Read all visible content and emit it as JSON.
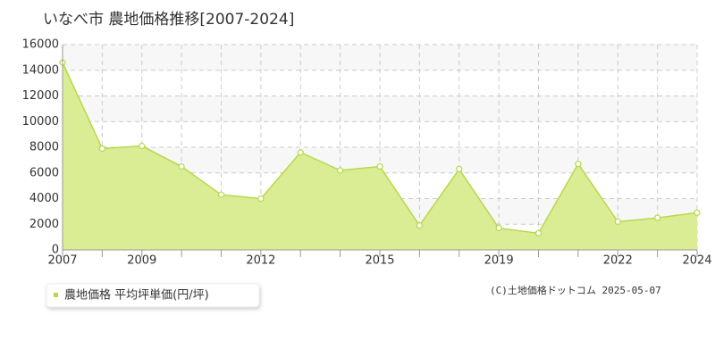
{
  "chart_data": {
    "type": "area",
    "title": "いなべ市 農地価格推移[2007-2024]",
    "categories": [
      "2007",
      null,
      "2009",
      null,
      null,
      "2012",
      null,
      null,
      "2015",
      null,
      null,
      "2019",
      null,
      null,
      "2022",
      null,
      "2024"
    ],
    "series": [
      {
        "name": "農地価格 平均坪単価(円/坪)",
        "color": "#b5d94a",
        "values": [
          14600,
          7900,
          8100,
          6500,
          4300,
          4000,
          7600,
          6200,
          6500,
          1900,
          6300,
          1700,
          1300,
          6700,
          2200,
          2500,
          2900
        ]
      }
    ],
    "ylim": [
      0,
      16000
    ],
    "yticks": [
      0,
      2000,
      4000,
      6000,
      8000,
      10000,
      12000,
      14000,
      16000
    ],
    "grid": true,
    "source": "(C)土地価格ドットコム 2025-05-07"
  }
}
